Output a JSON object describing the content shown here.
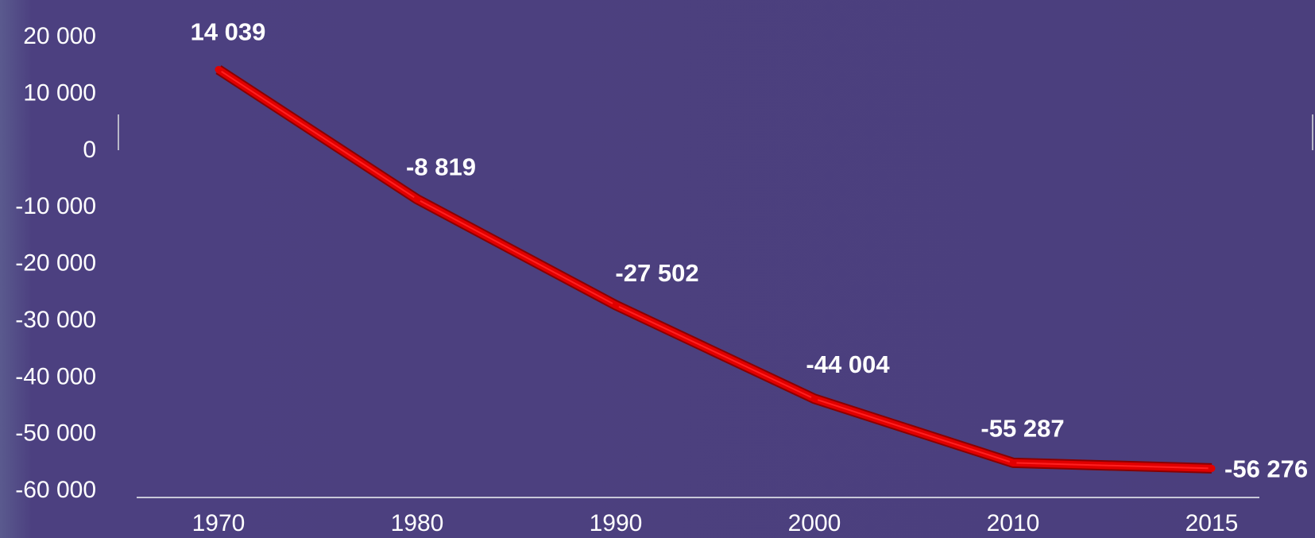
{
  "chart_data": {
    "type": "line",
    "title": "",
    "xlabel": "",
    "ylabel": "",
    "x": [
      "1970",
      "1980",
      "1990",
      "2000",
      "2010",
      "2015"
    ],
    "series": [
      {
        "values": [
          14039,
          -8819,
          -27502,
          -44004,
          -55287,
          -56276
        ],
        "color": "#e00000",
        "data_labels": [
          "14 039",
          "-8 819",
          "-27 502",
          "-44 004",
          "-55 287",
          "-56 276"
        ]
      }
    ],
    "ylim": [
      -60000,
      20000
    ],
    "yticks": [
      20000,
      10000,
      0,
      -10000,
      -20000,
      -30000,
      -40000,
      -50000,
      -60000
    ],
    "ytick_labels": [
      "20 000",
      "10 000",
      "0",
      "-10 000",
      "-20 000",
      "-30 000",
      "-40 000",
      "-50 000",
      "-60 000"
    ],
    "grid": false,
    "legend": "none",
    "colors": {
      "background": "#4b3f7d",
      "line": "#e00000",
      "text": "#ffffff",
      "axis": "#c8c8d8"
    }
  }
}
